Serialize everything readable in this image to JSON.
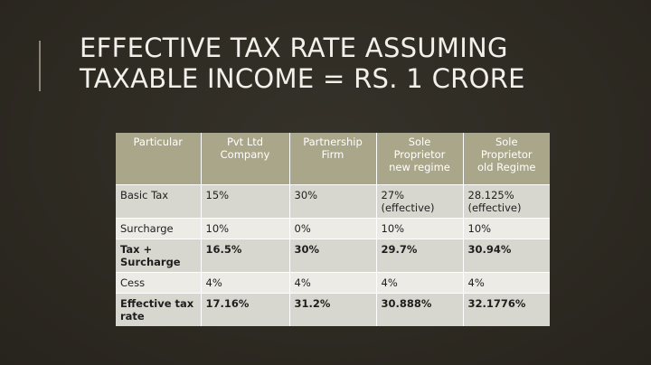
{
  "slide": {
    "title_line1": "EFFECTIVE TAX RATE ASSUMING",
    "title_line2": "TAXABLE INCOME = RS. 1 CRORE"
  },
  "table": {
    "headers": [
      "Particular",
      "Pvt Ltd\nCompany",
      "Partnership\nFirm",
      "Sole\nProprietor\nnew regime",
      "Sole\nProprietor\nold Regime"
    ],
    "rows": [
      {
        "label": "Basic Tax",
        "values": [
          "15%",
          "30%",
          "27%\n(effective)",
          "28.125%\n(effective)"
        ]
      },
      {
        "label": "Surcharge",
        "values": [
          "10%",
          "0%",
          "10%",
          "10%"
        ]
      },
      {
        "label": "Tax +\nSurcharge",
        "values": [
          "16.5%",
          "30%",
          "29.7%",
          "30.94%"
        ]
      },
      {
        "label": "Cess",
        "values": [
          "4%",
          "4%",
          "4%",
          "4%"
        ]
      },
      {
        "label": "Effective tax\nrate",
        "values": [
          "17.16%",
          "31.2%",
          "30.888%",
          "32.1776%"
        ]
      }
    ]
  },
  "colors": {
    "background": "#2f2c24",
    "header": "#aaa68a",
    "row_dark": "#d8d7cf",
    "row_light": "#ecebe6",
    "title_text": "#f2f0ea"
  }
}
